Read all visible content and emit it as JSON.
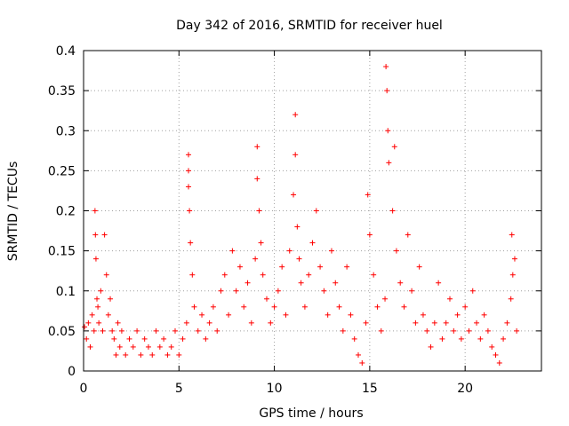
{
  "chart_data": {
    "type": "scatter",
    "title": "Day 342 of 2016, SRMTID for receiver huel",
    "xlabel": "GPS time / hours",
    "ylabel": "SRMTID / TECUs",
    "xlim": [
      0,
      24
    ],
    "ylim": [
      0,
      0.4
    ],
    "x_ticks": [
      0,
      5,
      10,
      15,
      20
    ],
    "x_tick_labels": [
      "0",
      "5",
      "10",
      "15",
      "20"
    ],
    "y_ticks": [
      0,
      0.05,
      0.1,
      0.15,
      0.2,
      0.25,
      0.3,
      0.35,
      0.4
    ],
    "y_tick_labels": [
      "0",
      "0.05",
      "0.1",
      "0.15",
      "0.2",
      "0.25",
      "0.3",
      "0.35",
      "0.4"
    ],
    "grid": true,
    "marker": "+",
    "series": [
      {
        "name": "SRMTID",
        "color": "#ff0000",
        "x": [
          0.05,
          0.15,
          0.25,
          0.35,
          0.45,
          0.55,
          0.6,
          0.62,
          0.65,
          0.7,
          0.75,
          0.8,
          0.9,
          1.0,
          1.1,
          1.2,
          1.3,
          1.4,
          1.5,
          1.6,
          1.7,
          1.8,
          1.9,
          2.0,
          2.2,
          2.4,
          2.6,
          2.8,
          3.0,
          3.2,
          3.4,
          3.6,
          3.8,
          4.0,
          4.2,
          4.4,
          4.6,
          4.8,
          5.0,
          5.2,
          5.4,
          5.5,
          5.5,
          5.5,
          5.55,
          5.6,
          5.7,
          5.8,
          6.0,
          6.2,
          6.4,
          6.6,
          6.8,
          7.0,
          7.2,
          7.4,
          7.6,
          7.8,
          8.0,
          8.2,
          8.4,
          8.6,
          8.8,
          9.0,
          9.1,
          9.1,
          9.2,
          9.3,
          9.4,
          9.6,
          9.8,
          10.0,
          10.2,
          10.4,
          10.6,
          10.8,
          11.0,
          11.1,
          11.1,
          11.2,
          11.3,
          11.4,
          11.6,
          11.8,
          12.0,
          12.2,
          12.4,
          12.6,
          12.8,
          13.0,
          13.2,
          13.4,
          13.6,
          13.8,
          14.0,
          14.2,
          14.4,
          14.6,
          14.8,
          14.9,
          15.0,
          15.2,
          15.4,
          15.6,
          15.8,
          15.85,
          15.9,
          15.95,
          16.0,
          16.2,
          16.3,
          16.4,
          16.6,
          16.8,
          17.0,
          17.2,
          17.4,
          17.6,
          17.8,
          18.0,
          18.2,
          18.4,
          18.6,
          18.8,
          19.0,
          19.2,
          19.4,
          19.6,
          19.8,
          20.0,
          20.2,
          20.4,
          20.6,
          20.8,
          21.0,
          21.2,
          21.4,
          21.6,
          21.8,
          22.0,
          22.2,
          22.4,
          22.45,
          22.5,
          22.6,
          22.7
        ],
        "y": [
          0.055,
          0.04,
          0.06,
          0.03,
          0.07,
          0.05,
          0.2,
          0.17,
          0.14,
          0.09,
          0.08,
          0.06,
          0.1,
          0.05,
          0.17,
          0.12,
          0.07,
          0.09,
          0.05,
          0.04,
          0.02,
          0.06,
          0.03,
          0.05,
          0.02,
          0.04,
          0.03,
          0.05,
          0.02,
          0.04,
          0.03,
          0.02,
          0.05,
          0.03,
          0.04,
          0.02,
          0.03,
          0.05,
          0.02,
          0.04,
          0.06,
          0.27,
          0.25,
          0.23,
          0.2,
          0.16,
          0.12,
          0.08,
          0.05,
          0.07,
          0.04,
          0.06,
          0.08,
          0.05,
          0.1,
          0.12,
          0.07,
          0.15,
          0.1,
          0.13,
          0.08,
          0.11,
          0.06,
          0.14,
          0.28,
          0.24,
          0.2,
          0.16,
          0.12,
          0.09,
          0.06,
          0.08,
          0.1,
          0.13,
          0.07,
          0.15,
          0.22,
          0.32,
          0.27,
          0.18,
          0.14,
          0.11,
          0.08,
          0.12,
          0.16,
          0.2,
          0.13,
          0.1,
          0.07,
          0.15,
          0.11,
          0.08,
          0.05,
          0.13,
          0.07,
          0.04,
          0.02,
          0.01,
          0.06,
          0.22,
          0.17,
          0.12,
          0.08,
          0.05,
          0.09,
          0.38,
          0.35,
          0.3,
          0.26,
          0.2,
          0.28,
          0.15,
          0.11,
          0.08,
          0.17,
          0.1,
          0.06,
          0.13,
          0.07,
          0.05,
          0.03,
          0.06,
          0.11,
          0.04,
          0.06,
          0.09,
          0.05,
          0.07,
          0.04,
          0.08,
          0.05,
          0.1,
          0.06,
          0.04,
          0.07,
          0.05,
          0.03,
          0.02,
          0.01,
          0.04,
          0.06,
          0.09,
          0.17,
          0.12,
          0.14,
          0.05
        ]
      }
    ]
  }
}
